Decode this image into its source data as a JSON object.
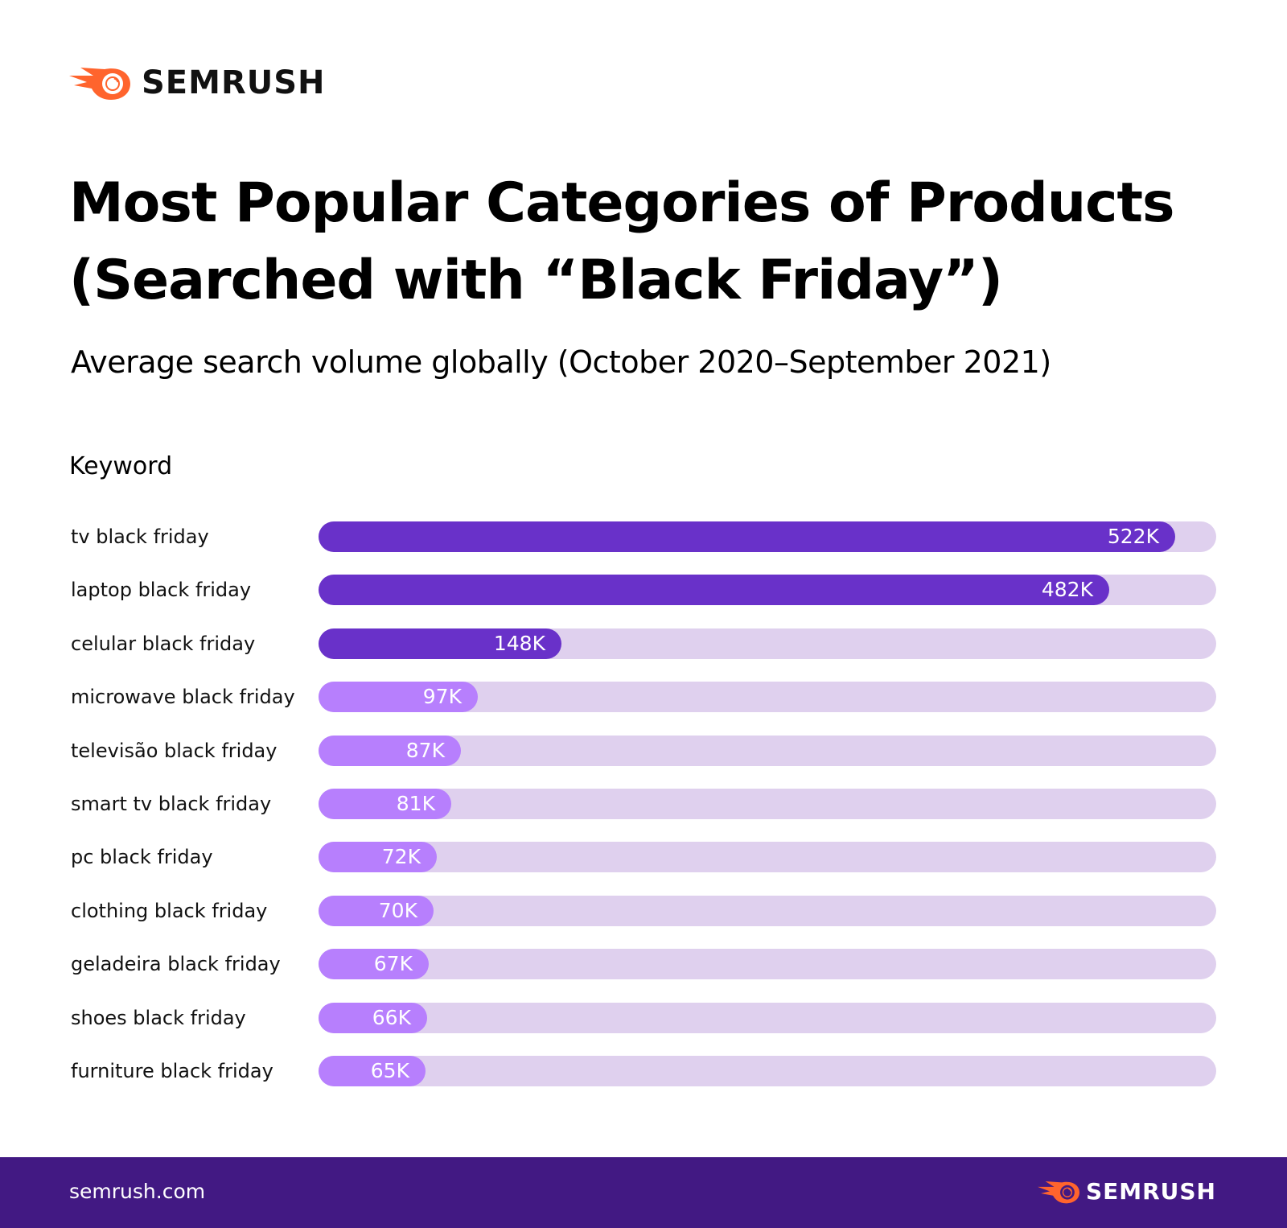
{
  "brand": {
    "name": "SEMRUSH",
    "color": "#ff642d",
    "site": "semrush.com",
    "footer_color": "#421983"
  },
  "chart_data": {
    "type": "bar",
    "orientation": "horizontal",
    "title": "Most Popular Categories of Products (Searched with “Black Friday”)",
    "subtitle": "Average search volume globally (October 2020–September 2021)",
    "category_header": "Keyword",
    "categories": [
      "tv black friday",
      "laptop black friday",
      "celular black friday",
      "microwave black friday",
      "televisão black friday",
      "smart tv black friday",
      "pc black friday",
      "clothing black friday",
      "geladeira black friday",
      "shoes black friday",
      "furniture black friday"
    ],
    "values": [
      522000,
      482000,
      148000,
      97000,
      87000,
      81000,
      72000,
      70000,
      67000,
      66000,
      65000
    ],
    "labels": [
      "522K",
      "482K",
      "148K",
      "97K",
      "87K",
      "81K",
      "72K",
      "70K",
      "67K",
      "66K",
      "65K"
    ],
    "colors": {
      "top": "#6931c9",
      "rest": "#b77ffd",
      "track": "#dfd0ee"
    },
    "grid": false
  }
}
